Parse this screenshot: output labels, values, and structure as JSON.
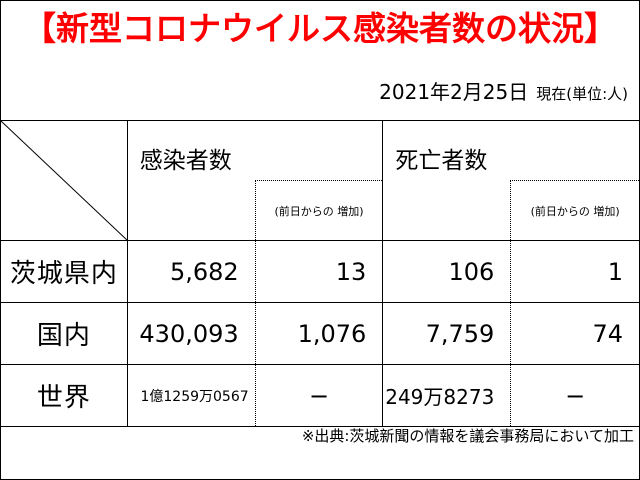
{
  "title": "【新型コロナウイルス感染者数の状況】",
  "date": "2021年2月25日",
  "date_note": "現在(単位:人)",
  "headers": {
    "infected": "感染者数",
    "infected_increase": "(前日からの 増加)",
    "deaths": "死亡者数",
    "deaths_increase": "(前日からの 増加)"
  },
  "rows": [
    {
      "label": "茨城県内",
      "infected": "5,682",
      "infected_increase": "13",
      "deaths": "106",
      "deaths_increase": "1"
    },
    {
      "label": "国内",
      "infected": "430,093",
      "infected_increase": "1,076",
      "deaths": "7,759",
      "deaths_increase": "74"
    },
    {
      "label": "世界",
      "infected": "1億1259万0567",
      "infected_increase": "−",
      "deaths": "249万8273",
      "deaths_increase": "−"
    }
  ],
  "source": "※出典:茨城新聞の情報を議会事務局において加工",
  "colors": {
    "title": "#ff0000",
    "border": "#000000",
    "background": "#ffffff"
  }
}
